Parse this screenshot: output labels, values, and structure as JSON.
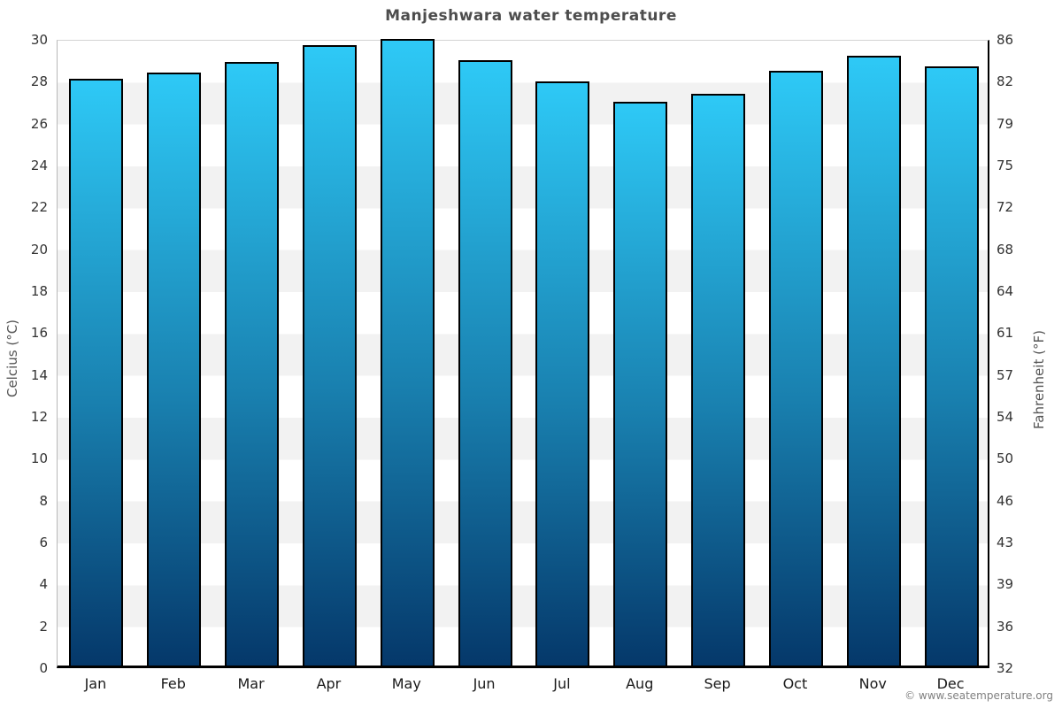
{
  "page": {
    "title": "Manjeshwara water temperature",
    "footer": "© www.seatemperature.org"
  },
  "chart_data": {
    "type": "bar",
    "title": "Manjeshwara water temperature",
    "categories": [
      "Jan",
      "Feb",
      "Mar",
      "Apr",
      "May",
      "Jun",
      "Jul",
      "Aug",
      "Sep",
      "Oct",
      "Nov",
      "Dec"
    ],
    "values": [
      28.0,
      28.3,
      28.8,
      29.6,
      29.9,
      28.9,
      27.9,
      26.9,
      27.3,
      28.4,
      29.1,
      28.6
    ],
    "series_unit": "°C",
    "ylabel": "Celcius (°C)",
    "y2label": "Fahrenheit (°F)",
    "ylim": [
      0,
      30
    ],
    "y_tick_step": 2,
    "y_ticks_top_to_bottom": [
      "30",
      "28",
      "26",
      "24",
      "22",
      "20",
      "18",
      "16",
      "14",
      "12",
      "10",
      "8",
      "6",
      "4",
      "2",
      "0"
    ],
    "y2_ticks_top_to_bottom": [
      "86",
      "82",
      "79",
      "75",
      "72",
      "68",
      "64",
      "61",
      "57",
      "54",
      "50",
      "46",
      "43",
      "39",
      "36",
      "32"
    ],
    "legend": "none",
    "grid": "alternating horizontal bands every 2°C",
    "colors": {
      "bar_gradient_top": "#2ec9f6",
      "bar_gradient_bottom": "#05386a",
      "bar_border": "#000000",
      "band_gray": "#f2f2f2",
      "band_white": "#ffffff",
      "title_text": "#4d4d4d",
      "tick_text": "#333333",
      "axis_title_text": "#555555",
      "footer_text": "#808080",
      "bottom_axis": "#000000"
    }
  }
}
